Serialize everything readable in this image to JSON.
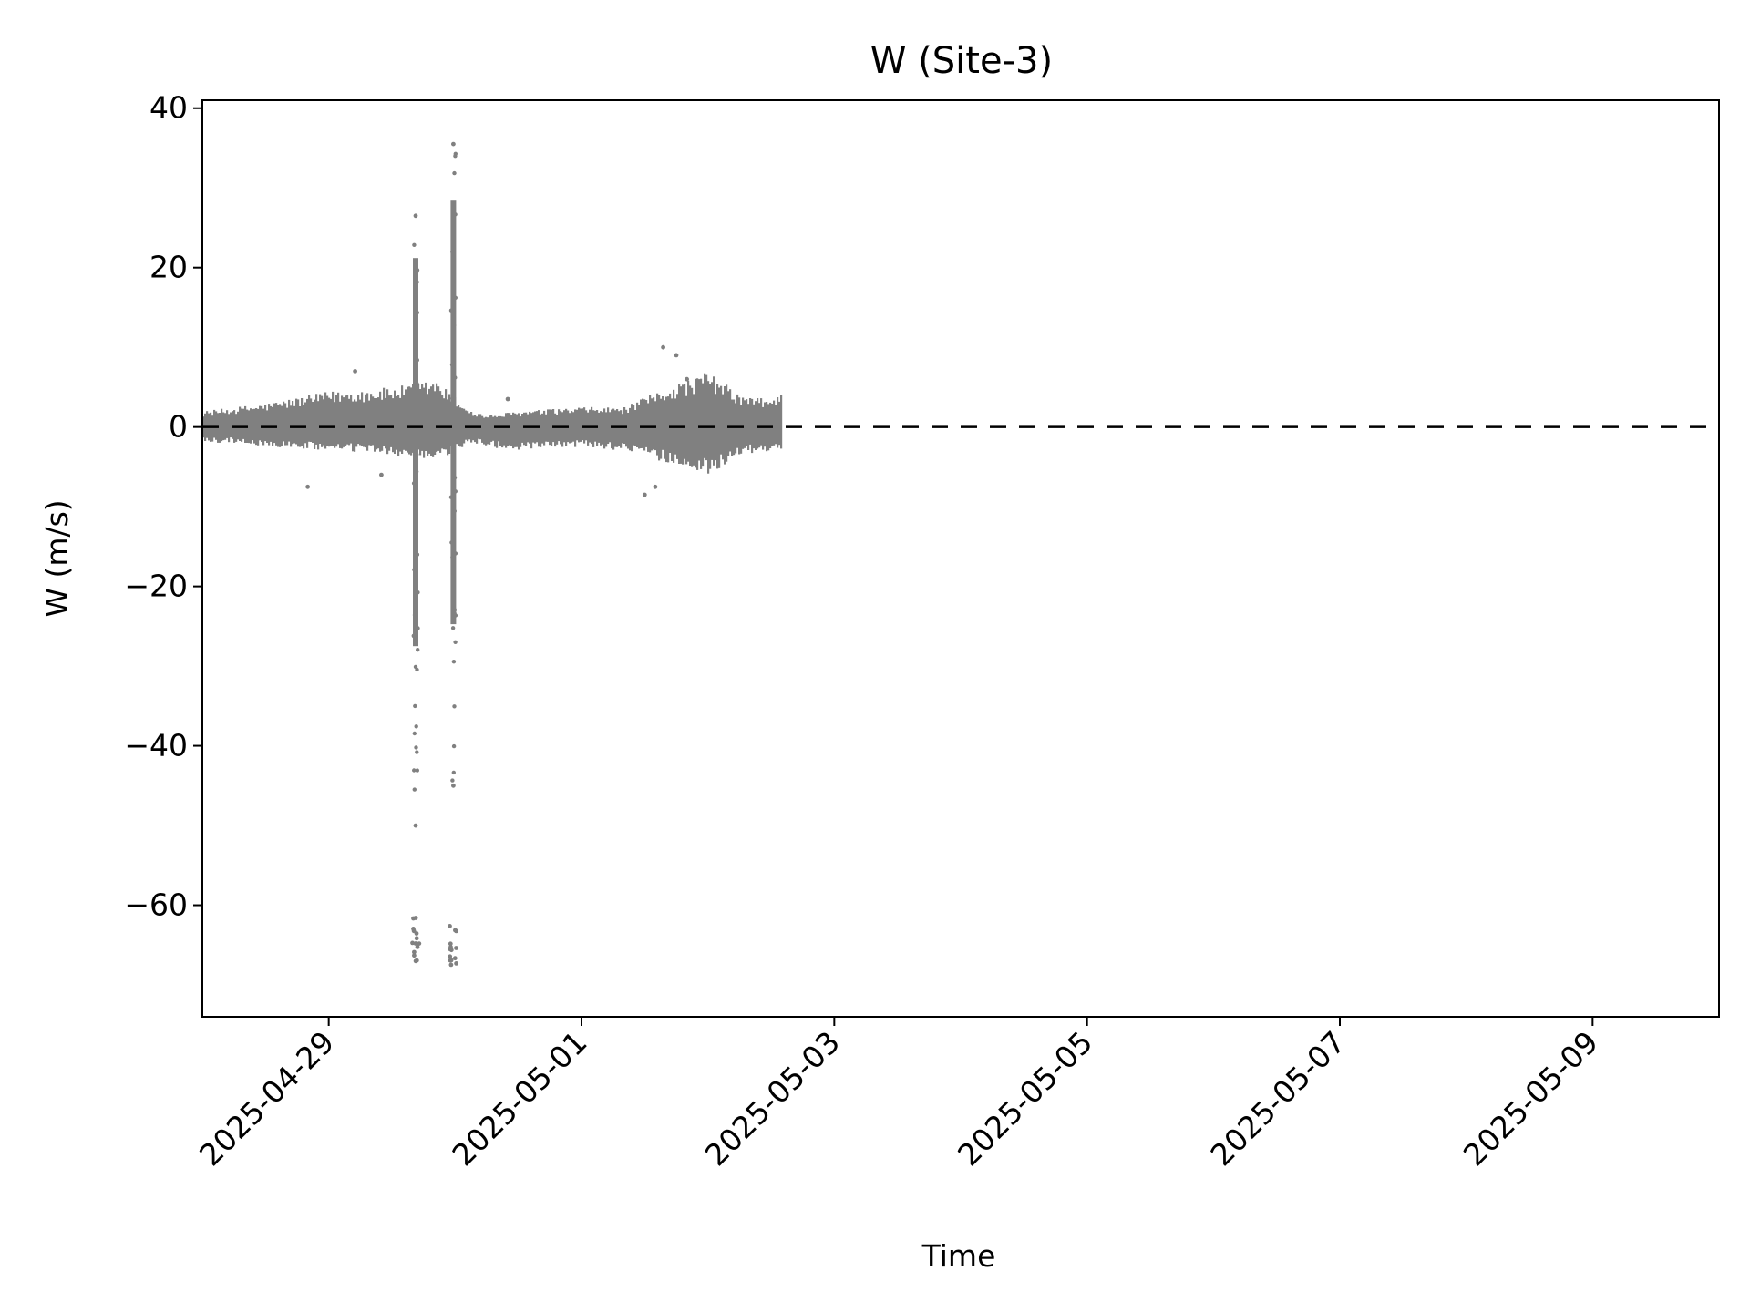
{
  "chart_data": {
    "type": "scatter",
    "title": "W (Site-3)",
    "xlabel": "Time",
    "ylabel": "W (m/s)",
    "xlim": [
      "2025-04-28T00:00",
      "2025-05-10T00:00"
    ],
    "ylim": [
      -74,
      41
    ],
    "x_tick_labels": [
      "2025-04-29",
      "2025-05-01",
      "2025-05-03",
      "2025-05-05",
      "2025-05-07",
      "2025-05-09"
    ],
    "y_tick_labels": [
      40,
      20,
      0,
      -20,
      -40,
      -60
    ],
    "grid": false,
    "marker_color": "#808080",
    "reference_line": {
      "y": 0,
      "style": "dashed",
      "color": "#000000"
    },
    "envelope": {
      "x": [
        "2025-04-28T00:00",
        "2025-04-28T06:00",
        "2025-04-28T12:00",
        "2025-04-29T00:00",
        "2025-04-29T12:00",
        "2025-04-29T20:00",
        "2025-04-30T03:00",
        "2025-04-30T06:00",
        "2025-04-30T12:00",
        "2025-05-01T00:00",
        "2025-05-01T08:00",
        "2025-05-01T16:00",
        "2025-05-02T00:00",
        "2025-05-02T06:00",
        "2025-05-02T12:00",
        "2025-05-02T14:00"
      ],
      "upper": [
        2,
        2.5,
        3,
        4.5,
        5,
        6,
        2,
        1.5,
        2,
        2.5,
        2.5,
        5,
        7,
        4,
        3.5,
        5
      ],
      "lower": [
        -2,
        -2,
        -2.5,
        -3,
        -3.5,
        -4.5,
        -2,
        -2.5,
        -3,
        -2.5,
        -3,
        -4.5,
        -6,
        -3.5,
        -3,
        -3
      ]
    },
    "spikes": [
      {
        "x": "2025-04-29T16:30",
        "max": 26.5,
        "min": -50,
        "outlier_min": -67
      },
      {
        "x": "2025-04-29T23:40",
        "max": 35.5,
        "min": -45,
        "outlier_min": -68.5
      }
    ],
    "scattered_outliers": {
      "x": [
        "2025-04-28T20:00",
        "2025-04-29T05:00",
        "2025-04-29T10:00",
        "2025-04-30T10:00",
        "2025-05-01T15:30",
        "2025-05-01T18:00",
        "2025-05-01T20:00",
        "2025-05-01T12:00",
        "2025-05-01T14:00"
      ],
      "y": [
        -7.5,
        7,
        -6,
        3.5,
        10,
        9,
        6,
        -8.5,
        -7.5
      ]
    }
  }
}
